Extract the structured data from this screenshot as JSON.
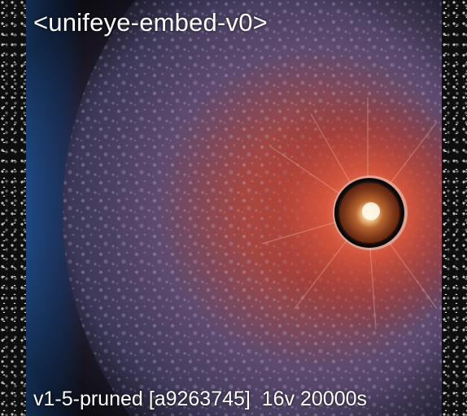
{
  "overlay": {
    "title": "<unifeye-embed-v0>",
    "footer": "v1-5-pruned [a9263745]  16v 20000s"
  },
  "colors": {
    "background": "#0b0b0b",
    "glow_blue": "#2b5fa6",
    "glow_red": "#c8432b",
    "ring": "#0a0a0a",
    "core": "#f4d7a8"
  }
}
